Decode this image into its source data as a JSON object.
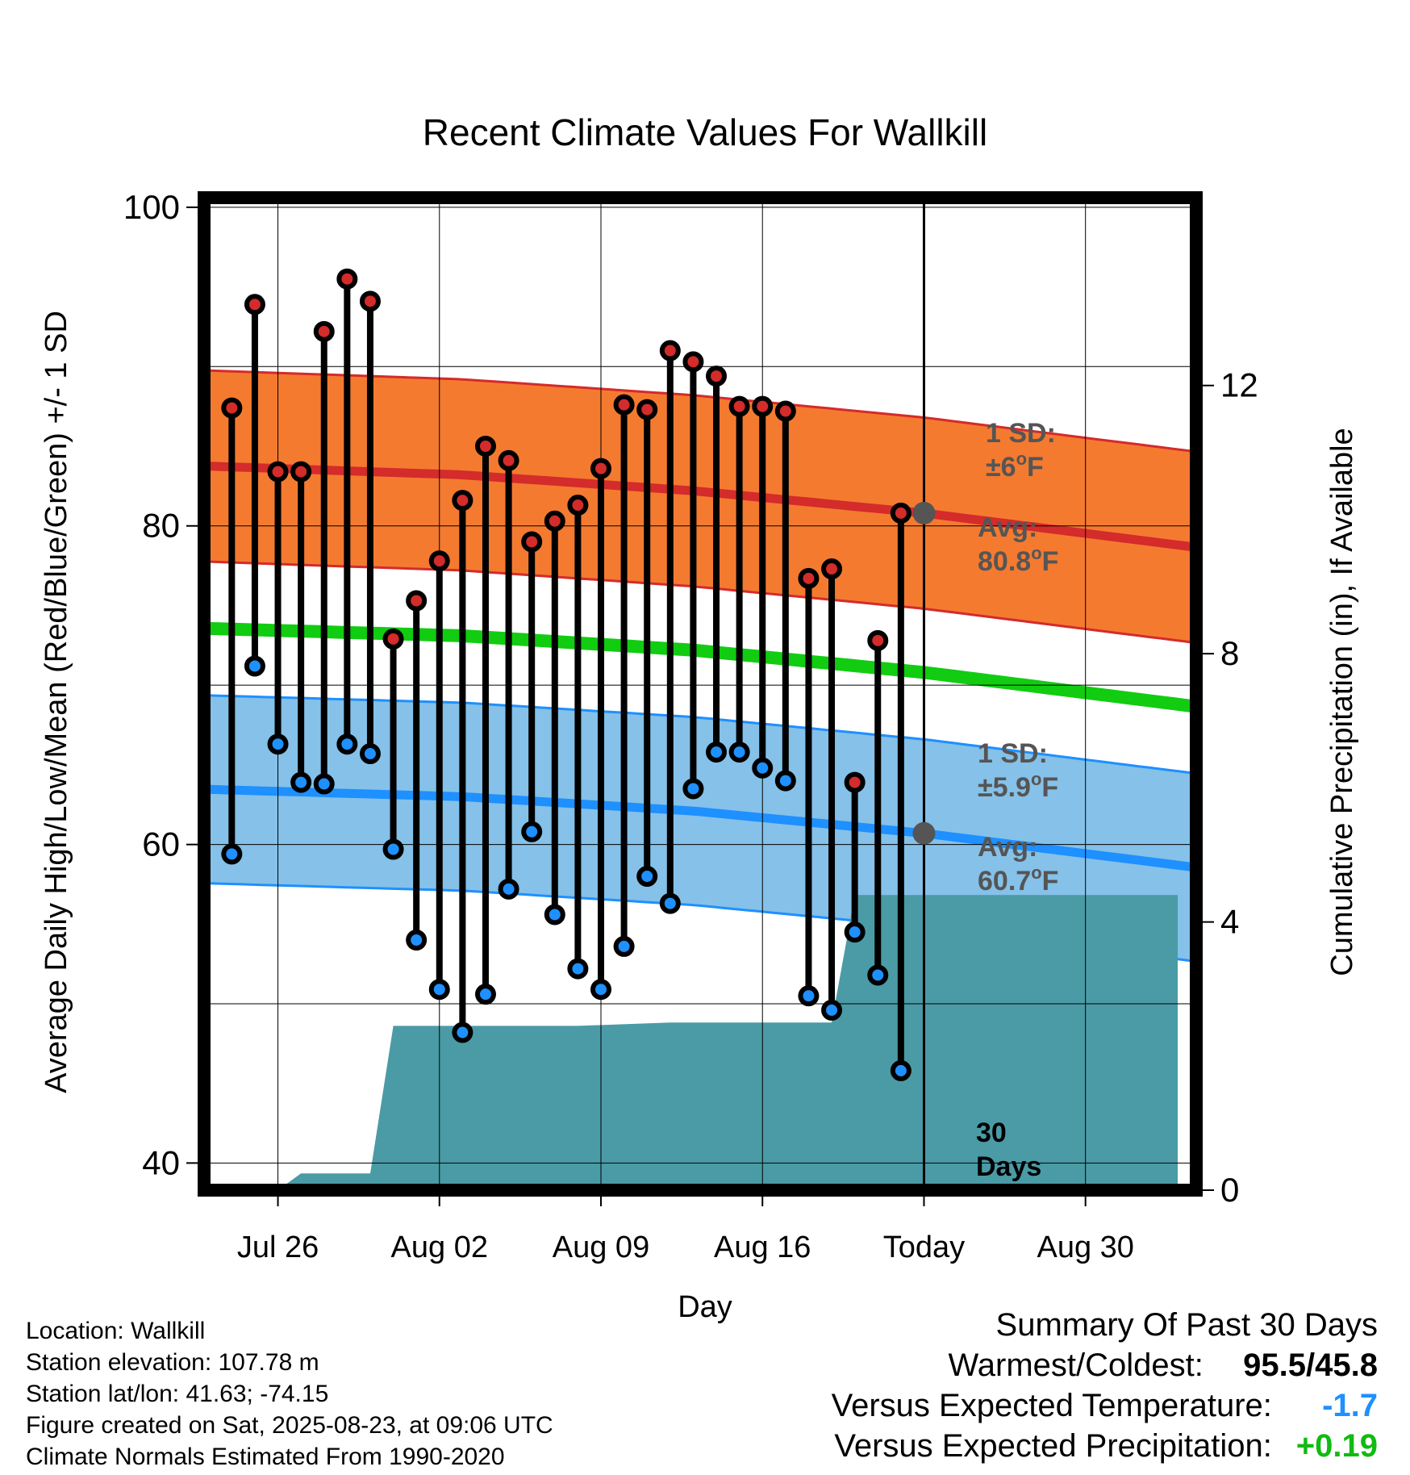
{
  "chart_data": {
    "type": "line",
    "title": "Recent Climate Values For Wallkill",
    "xlabel": "Day",
    "ylabel": "Average Daily High/Low/Mean (Red/Blue/Green) +/- 1 SD",
    "y2label": "Cumulative Precipitation (in), If Available",
    "x_tick_labels": [
      "Jul 26",
      "Aug 02",
      "Aug 09",
      "Aug 16",
      "Today",
      "Aug 30"
    ],
    "x_tick_days": [
      2,
      9,
      16,
      23,
      30,
      37
    ],
    "y_ticks": [
      "100",
      "80",
      "60",
      "40"
    ],
    "y_tick_values": [
      100,
      80,
      60,
      40
    ],
    "y_minor_tick_values": [
      90,
      70,
      50
    ],
    "y2_ticks": [
      "12",
      "8",
      "4",
      "0"
    ],
    "y2_tick_values": [
      12,
      8,
      4,
      0
    ],
    "ylim": [
      38.3,
      100.6
    ],
    "y2lim": [
      0,
      14.8
    ],
    "xlim": [
      -1.2,
      41.8
    ],
    "days": [
      0,
      1,
      2,
      3,
      4,
      5,
      6,
      7,
      8,
      9,
      10,
      11,
      12,
      13,
      14,
      15,
      16,
      17,
      18,
      19,
      20,
      21,
      22,
      23,
      24,
      25,
      26,
      27,
      28,
      29
    ],
    "highs": [
      87.4,
      93.9,
      83.4,
      83.4,
      92.2,
      95.5,
      94.1,
      72.9,
      75.3,
      77.8,
      81.6,
      85.0,
      84.1,
      79.0,
      80.3,
      81.3,
      83.6,
      87.6,
      87.3,
      91.0,
      90.3,
      89.4,
      87.5,
      87.5,
      87.2,
      76.7,
      77.3,
      63.9,
      72.8,
      80.8
    ],
    "lows": [
      59.4,
      71.2,
      66.3,
      63.9,
      63.8,
      66.3,
      65.7,
      59.7,
      54.0,
      50.9,
      48.2,
      50.6,
      57.2,
      60.8,
      55.6,
      52.2,
      50.9,
      53.6,
      58.0,
      56.3,
      63.5,
      65.8,
      65.8,
      64.8,
      64.0,
      50.5,
      49.6,
      54.5,
      51.8,
      45.8
    ],
    "normal_high": {
      "x": [
        -2,
        10,
        20,
        30,
        41
      ],
      "mean": [
        83.8,
        83.2,
        82.2,
        80.8,
        78.8
      ],
      "sd": 6
    },
    "normal_low": {
      "x": [
        -2,
        10,
        20,
        30,
        41
      ],
      "mean": [
        63.5,
        63.0,
        62.1,
        60.7,
        58.7
      ],
      "sd": 5.9
    },
    "normal_mean": {
      "x": [
        -2,
        10,
        20,
        30,
        41
      ],
      "values": [
        73.6,
        73.1,
        72.2,
        70.8,
        68.8
      ]
    },
    "precip_cumulative": {
      "x": [
        2,
        3,
        6,
        7,
        15,
        19,
        26,
        27,
        41
      ],
      "y": [
        0,
        0.25,
        0.25,
        2.45,
        2.45,
        2.5,
        2.5,
        4.4,
        4.4
      ]
    },
    "today_day": 30,
    "annotations": {
      "high_sd": {
        "line1": "1 SD:",
        "line2": "±6",
        "unit": "F"
      },
      "high_avg": {
        "line1": "Avg:",
        "line2": "80.8",
        "unit": "F"
      },
      "low_sd": {
        "line1": "1 SD:",
        "line2": "±5.9",
        "unit": "F"
      },
      "low_avg": {
        "line1": "Avg:",
        "line2": "60.7",
        "unit": "F"
      },
      "days_label": {
        "line1": "30",
        "line2": "Days"
      }
    },
    "colors": {
      "high_marker": "#d42b2b",
      "low_marker": "#1e90ff",
      "high_band": "#f47a30",
      "high_line": "#d42b2b",
      "low_band": "#85c1e8",
      "low_line": "#1e90ff",
      "mean_line": "#11cc11",
      "precip": "#4a9ba6",
      "annotation": "#555555"
    }
  },
  "footer_left": [
    "Location: Wallkill",
    "Station elevation: 107.78 m",
    "Station lat/lon: 41.63; -74.15",
    "Figure created on Sat, 2025-08-23, at 09:06 UTC",
    "Climate Normals Estimated From 1990-2020"
  ],
  "summary": {
    "title": "Summary Of Past 30 Days",
    "warm_cold_label": "Warmest/Coldest:",
    "warm_cold_value": "95.5/45.8",
    "temp_label": "Versus Expected Temperature:",
    "temp_value": "-1.7",
    "temp_color": "#1e90ff",
    "precip_label": "Versus Expected Precipitation:",
    "precip_value": "+0.19",
    "precip_color": "#11bb11"
  }
}
